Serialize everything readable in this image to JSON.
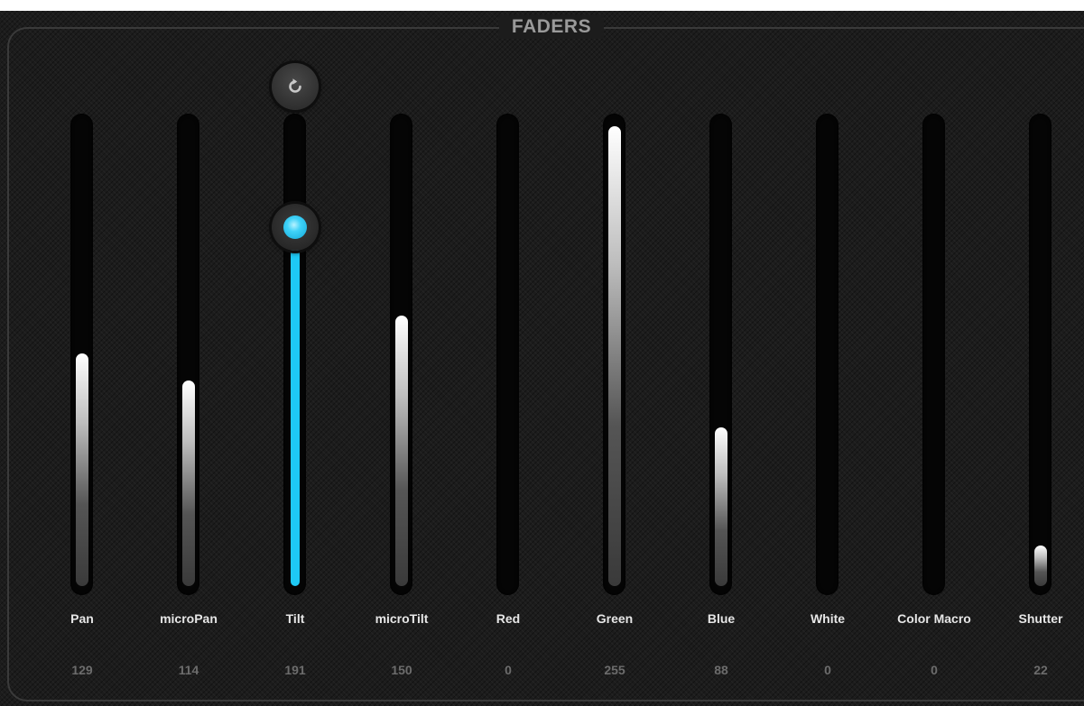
{
  "panel": {
    "title": "FADERS"
  },
  "accent_color": "#1ec9f5",
  "faders": [
    {
      "label": "Pan",
      "value": "129",
      "level": 129
    },
    {
      "label": "microPan",
      "value": "114",
      "level": 114
    },
    {
      "label": "Tilt",
      "value": "191",
      "level": 191,
      "active": true,
      "reset_icon": "reset-icon"
    },
    {
      "label": "microTilt",
      "value": "150",
      "level": 150
    },
    {
      "label": "Red",
      "value": "0",
      "level": 0
    },
    {
      "label": "Green",
      "value": "255",
      "level": 255
    },
    {
      "label": "Blue",
      "value": "88",
      "level": 88
    },
    {
      "label": "White",
      "value": "0",
      "level": 0
    },
    {
      "label": "Color Macro",
      "value": "0",
      "level": 0
    },
    {
      "label": "Shutter",
      "value": "22",
      "level": 22
    }
  ]
}
